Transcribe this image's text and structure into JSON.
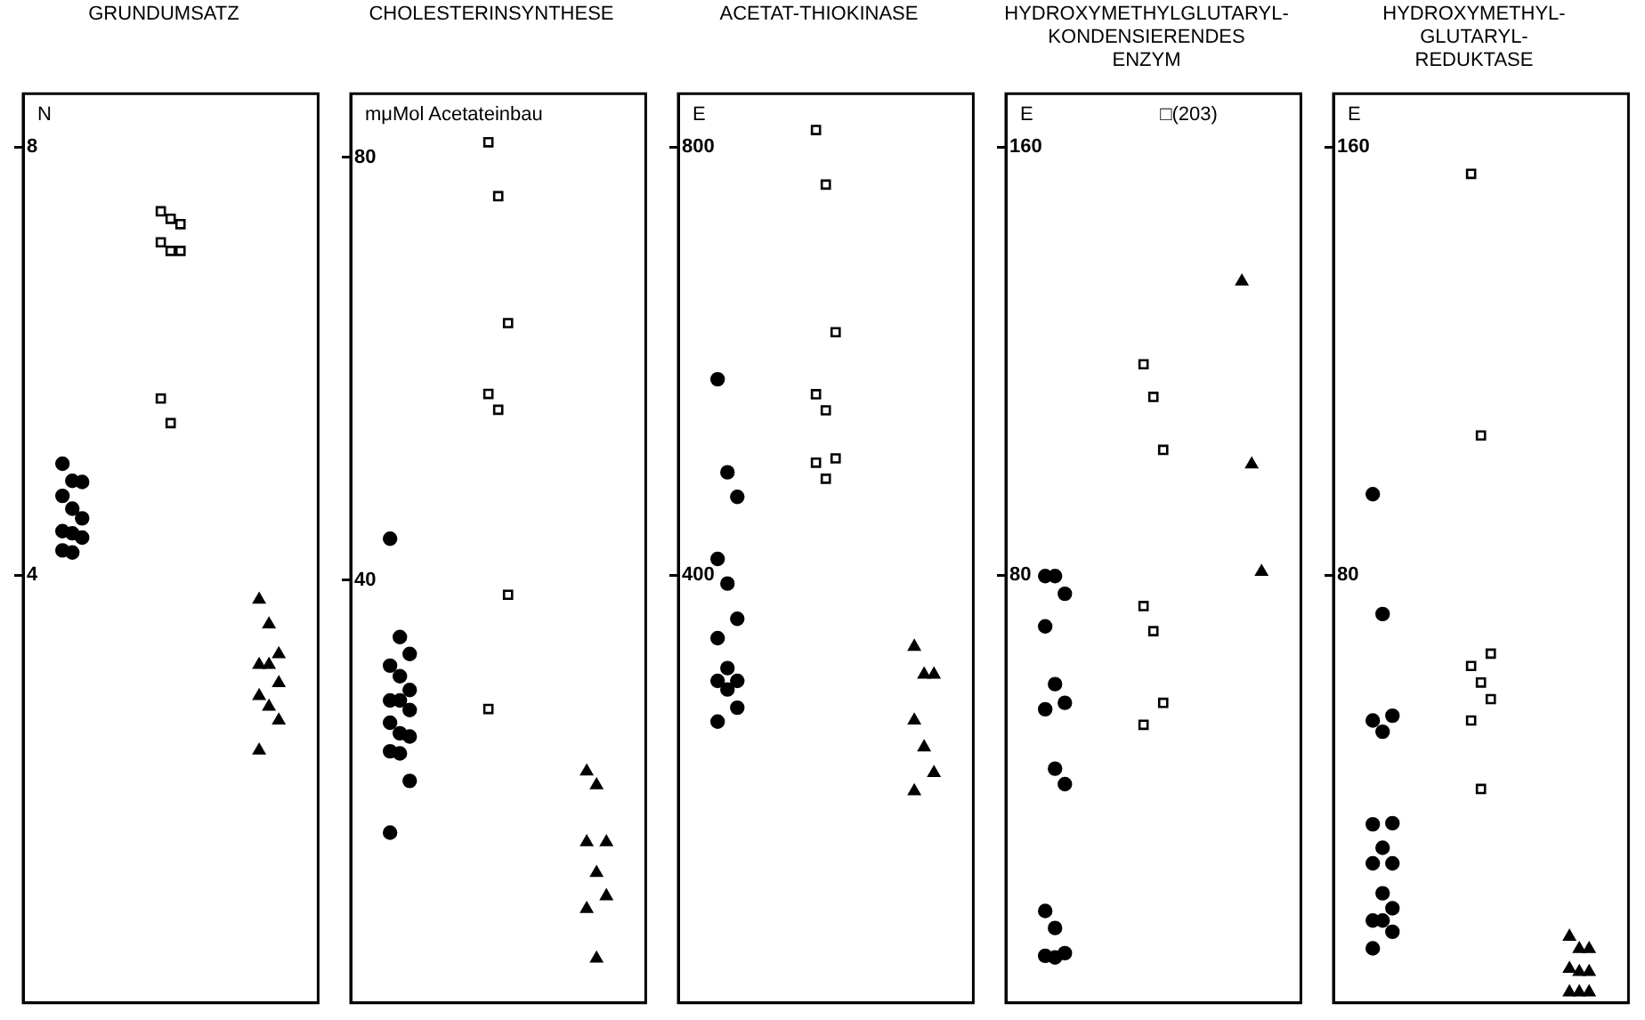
{
  "chart_data": [
    {
      "type": "scatter",
      "title": "GRUNDUMSATZ",
      "ylabel": "N",
      "categories": [
        null,
        null,
        null
      ],
      "ylim": [
        0,
        8.5
      ],
      "yticks": [
        4,
        8
      ],
      "tick_labels": "y",
      "legend": false,
      "series": [
        {
          "color": "#000000",
          "marker": "circle",
          "values": [
            5.04,
            null,
            null
          ]
        },
        {
          "color": "#000000",
          "marker": "circle",
          "values": [
            4.88,
            null,
            null
          ]
        },
        {
          "color": "#000000",
          "marker": "circle",
          "values": [
            4.87,
            null,
            null
          ]
        },
        {
          "color": "#000000",
          "marker": "circle",
          "values": [
            4.74,
            null,
            null
          ]
        },
        {
          "color": "#000000",
          "marker": "circle",
          "values": [
            4.62,
            null,
            null
          ]
        },
        {
          "color": "#000000",
          "marker": "circle",
          "values": [
            4.53,
            null,
            null
          ]
        },
        {
          "color": "#000000",
          "marker": "circle",
          "values": [
            4.41,
            null,
            null
          ]
        },
        {
          "color": "#000000",
          "marker": "circle",
          "values": [
            4.39,
            null,
            null
          ]
        },
        {
          "color": "#000000",
          "marker": "circle",
          "values": [
            4.35,
            null,
            null
          ]
        },
        {
          "color": "#000000",
          "marker": "circle",
          "values": [
            4.23,
            null,
            null
          ]
        },
        {
          "color": "#000000",
          "marker": "circle",
          "values": [
            4.21,
            null,
            null
          ]
        },
        {
          "color": "#000000",
          "marker": "square",
          "values": [
            null,
            7.4,
            null
          ]
        },
        {
          "color": "#000000",
          "marker": "square",
          "values": [
            null,
            7.33,
            null
          ]
        },
        {
          "color": "#000000",
          "marker": "square",
          "values": [
            null,
            7.28,
            null
          ]
        },
        {
          "color": "#000000",
          "marker": "square",
          "values": [
            null,
            7.11,
            null
          ]
        },
        {
          "color": "#000000",
          "marker": "square",
          "values": [
            null,
            7.03,
            null
          ]
        },
        {
          "color": "#000000",
          "marker": "square",
          "values": [
            null,
            7.03,
            null
          ]
        },
        {
          "color": "#000000",
          "marker": "square",
          "values": [
            null,
            5.65,
            null
          ]
        },
        {
          "color": "#000000",
          "marker": "square",
          "values": [
            null,
            5.42,
            null
          ]
        },
        {
          "color": "#000000",
          "marker": "triangle",
          "values": [
            null,
            null,
            3.77
          ]
        },
        {
          "color": "#000000",
          "marker": "triangle",
          "values": [
            null,
            null,
            3.54
          ]
        },
        {
          "color": "#000000",
          "marker": "triangle",
          "values": [
            null,
            null,
            3.26
          ]
        },
        {
          "color": "#000000",
          "marker": "triangle",
          "values": [
            null,
            null,
            3.16
          ]
        },
        {
          "color": "#000000",
          "marker": "triangle",
          "values": [
            null,
            null,
            3.16
          ]
        },
        {
          "color": "#000000",
          "marker": "triangle",
          "values": [
            null,
            null,
            2.99
          ]
        },
        {
          "color": "#000000",
          "marker": "triangle",
          "values": [
            null,
            null,
            2.87
          ]
        },
        {
          "color": "#000000",
          "marker": "triangle",
          "values": [
            null,
            null,
            2.77
          ]
        },
        {
          "color": "#000000",
          "marker": "triangle",
          "values": [
            null,
            null,
            2.64
          ]
        },
        {
          "color": "#000000",
          "marker": "triangle",
          "values": [
            null,
            null,
            2.36
          ]
        }
      ]
    },
    {
      "type": "scatter",
      "title": "CHOLESTERINSYNTHESE",
      "ylabel": "mμMol Acetateinbau",
      "categories": [
        null,
        null,
        null
      ],
      "ylim": [
        0,
        86
      ],
      "yticks": [
        40,
        80
      ],
      "tick_labels": "y",
      "legend": false,
      "series": [
        {
          "color": "#000000",
          "marker": "circle",
          "values": [
            43.9,
            null,
            null
          ]
        },
        {
          "color": "#000000",
          "marker": "circle",
          "values": [
            34.6,
            null,
            null
          ]
        },
        {
          "color": "#000000",
          "marker": "circle",
          "values": [
            33.0,
            null,
            null
          ]
        },
        {
          "color": "#000000",
          "marker": "circle",
          "values": [
            31.9,
            null,
            null
          ]
        },
        {
          "color": "#000000",
          "marker": "circle",
          "values": [
            30.9,
            null,
            null
          ]
        },
        {
          "color": "#000000",
          "marker": "circle",
          "values": [
            29.6,
            null,
            null
          ]
        },
        {
          "color": "#000000",
          "marker": "circle",
          "values": [
            28.6,
            null,
            null
          ]
        },
        {
          "color": "#000000",
          "marker": "circle",
          "values": [
            28.6,
            null,
            null
          ]
        },
        {
          "color": "#000000",
          "marker": "circle",
          "values": [
            27.7,
            null,
            null
          ]
        },
        {
          "color": "#000000",
          "marker": "circle",
          "values": [
            26.5,
            null,
            null
          ]
        },
        {
          "color": "#000000",
          "marker": "circle",
          "values": [
            25.5,
            null,
            null
          ]
        },
        {
          "color": "#000000",
          "marker": "circle",
          "values": [
            25.2,
            null,
            null
          ]
        },
        {
          "color": "#000000",
          "marker": "circle",
          "values": [
            23.8,
            null,
            null
          ]
        },
        {
          "color": "#000000",
          "marker": "circle",
          "values": [
            23.6,
            null,
            null
          ]
        },
        {
          "color": "#000000",
          "marker": "circle",
          "values": [
            21.0,
            null,
            null
          ]
        },
        {
          "color": "#000000",
          "marker": "circle",
          "values": [
            16.1,
            null,
            null
          ]
        },
        {
          "color": "#000000",
          "marker": "square",
          "values": [
            null,
            81.4,
            null
          ]
        },
        {
          "color": "#000000",
          "marker": "square",
          "values": [
            null,
            76.3,
            null
          ]
        },
        {
          "color": "#000000",
          "marker": "square",
          "values": [
            null,
            64.3,
            null
          ]
        },
        {
          "color": "#000000",
          "marker": "square",
          "values": [
            null,
            57.6,
            null
          ]
        },
        {
          "color": "#000000",
          "marker": "square",
          "values": [
            null,
            56.1,
            null
          ]
        },
        {
          "color": "#000000",
          "marker": "square",
          "values": [
            null,
            38.6,
            null
          ]
        },
        {
          "color": "#000000",
          "marker": "square",
          "values": [
            null,
            27.8,
            null
          ]
        },
        {
          "color": "#000000",
          "marker": "triangle",
          "values": [
            null,
            null,
            21.9
          ]
        },
        {
          "color": "#000000",
          "marker": "triangle",
          "values": [
            null,
            null,
            20.6
          ]
        },
        {
          "color": "#000000",
          "marker": "triangle",
          "values": [
            null,
            null,
            15.2
          ]
        },
        {
          "color": "#000000",
          "marker": "triangle",
          "values": [
            null,
            null,
            15.2
          ]
        },
        {
          "color": "#000000",
          "marker": "triangle",
          "values": [
            null,
            null,
            12.3
          ]
        },
        {
          "color": "#000000",
          "marker": "triangle",
          "values": [
            null,
            null,
            10.1
          ]
        },
        {
          "color": "#000000",
          "marker": "triangle",
          "values": [
            null,
            null,
            8.9
          ]
        },
        {
          "color": "#000000",
          "marker": "triangle",
          "values": [
            null,
            null,
            4.2
          ]
        }
      ]
    },
    {
      "type": "scatter",
      "title": "ACETAT-THIOKINASE",
      "ylabel": "E",
      "categories": [
        null,
        null,
        null
      ],
      "ylim": [
        0,
        850
      ],
      "yticks": [
        400,
        800
      ],
      "tick_labels": "y",
      "legend": false,
      "series": [
        {
          "color": "#000000",
          "marker": "circle",
          "values": [
            583,
            null,
            null
          ]
        },
        {
          "color": "#000000",
          "marker": "circle",
          "values": [
            496,
            null,
            null
          ]
        },
        {
          "color": "#000000",
          "marker": "circle",
          "values": [
            473,
            null,
            null
          ]
        },
        {
          "color": "#000000",
          "marker": "circle",
          "values": [
            415,
            null,
            null
          ]
        },
        {
          "color": "#000000",
          "marker": "circle",
          "values": [
            392,
            null,
            null
          ]
        },
        {
          "color": "#000000",
          "marker": "circle",
          "values": [
            359,
            null,
            null
          ]
        },
        {
          "color": "#000000",
          "marker": "circle",
          "values": [
            341,
            null,
            null
          ]
        },
        {
          "color": "#000000",
          "marker": "circle",
          "values": [
            313,
            null,
            null
          ]
        },
        {
          "color": "#000000",
          "marker": "circle",
          "values": [
            301,
            null,
            null
          ]
        },
        {
          "color": "#000000",
          "marker": "circle",
          "values": [
            301,
            null,
            null
          ]
        },
        {
          "color": "#000000",
          "marker": "circle",
          "values": [
            293,
            null,
            null
          ]
        },
        {
          "color": "#000000",
          "marker": "circle",
          "values": [
            276,
            null,
            null
          ]
        },
        {
          "color": "#000000",
          "marker": "circle",
          "values": [
            263,
            null,
            null
          ]
        },
        {
          "color": "#000000",
          "marker": "square",
          "values": [
            null,
            816,
            null
          ]
        },
        {
          "color": "#000000",
          "marker": "square",
          "values": [
            null,
            765,
            null
          ]
        },
        {
          "color": "#000000",
          "marker": "square",
          "values": [
            null,
            627,
            null
          ]
        },
        {
          "color": "#000000",
          "marker": "square",
          "values": [
            null,
            569,
            null
          ]
        },
        {
          "color": "#000000",
          "marker": "square",
          "values": [
            null,
            554,
            null
          ]
        },
        {
          "color": "#000000",
          "marker": "square",
          "values": [
            null,
            509,
            null
          ]
        },
        {
          "color": "#000000",
          "marker": "square",
          "values": [
            null,
            505,
            null
          ]
        },
        {
          "color": "#000000",
          "marker": "square",
          "values": [
            null,
            490,
            null
          ]
        },
        {
          "color": "#000000",
          "marker": "triangle",
          "values": [
            null,
            null,
            333
          ]
        },
        {
          "color": "#000000",
          "marker": "triangle",
          "values": [
            null,
            null,
            307
          ]
        },
        {
          "color": "#000000",
          "marker": "triangle",
          "values": [
            null,
            null,
            307
          ]
        },
        {
          "color": "#000000",
          "marker": "triangle",
          "values": [
            null,
            null,
            264
          ]
        },
        {
          "color": "#000000",
          "marker": "triangle",
          "values": [
            null,
            null,
            239
          ]
        },
        {
          "color": "#000000",
          "marker": "triangle",
          "values": [
            null,
            null,
            215
          ]
        },
        {
          "color": "#000000",
          "marker": "triangle",
          "values": [
            null,
            null,
            198
          ]
        }
      ]
    },
    {
      "type": "scatter",
      "title": "HYDROXYMETHYLGLUTARYL-\nKONDENSIERENDES\nENZYM",
      "ylabel": "E",
      "categories": [
        null,
        null,
        null
      ],
      "ylim": [
        0,
        170
      ],
      "yticks": [
        80,
        160
      ],
      "tick_labels": "y",
      "legend": false,
      "annotations": [
        "□(203)"
      ],
      "series": [
        {
          "color": "#000000",
          "marker": "circle",
          "values": [
            79.8,
            null,
            null
          ]
        },
        {
          "color": "#000000",
          "marker": "circle",
          "values": [
            79.8,
            null,
            null
          ]
        },
        {
          "color": "#000000",
          "marker": "circle",
          "values": [
            76.5,
            null,
            null
          ]
        },
        {
          "color": "#000000",
          "marker": "circle",
          "values": [
            70.4,
            null,
            null
          ]
        },
        {
          "color": "#000000",
          "marker": "circle",
          "values": [
            59.6,
            null,
            null
          ]
        },
        {
          "color": "#000000",
          "marker": "circle",
          "values": [
            56.1,
            null,
            null
          ]
        },
        {
          "color": "#000000",
          "marker": "circle",
          "values": [
            54.9,
            null,
            null
          ]
        },
        {
          "color": "#000000",
          "marker": "circle",
          "values": [
            43.8,
            null,
            null
          ]
        },
        {
          "color": "#000000",
          "marker": "circle",
          "values": [
            40.9,
            null,
            null
          ]
        },
        {
          "color": "#000000",
          "marker": "circle",
          "values": [
            17.2,
            null,
            null
          ]
        },
        {
          "color": "#000000",
          "marker": "circle",
          "values": [
            14.0,
            null,
            null
          ]
        },
        {
          "color": "#000000",
          "marker": "circle",
          "values": [
            9.3,
            null,
            null
          ]
        },
        {
          "color": "#000000",
          "marker": "circle",
          "values": [
            8.8,
            null,
            null
          ]
        },
        {
          "color": "#000000",
          "marker": "circle",
          "values": [
            8.5,
            null,
            null
          ]
        },
        {
          "color": "#000000",
          "marker": "square",
          "values": [
            null,
            119.4,
            null
          ]
        },
        {
          "color": "#000000",
          "marker": "square",
          "values": [
            null,
            113.3,
            null
          ]
        },
        {
          "color": "#000000",
          "marker": "square",
          "values": [
            null,
            103.4,
            null
          ]
        },
        {
          "color": "#000000",
          "marker": "square",
          "values": [
            null,
            74.2,
            null
          ]
        },
        {
          "color": "#000000",
          "marker": "square",
          "values": [
            null,
            69.5,
            null
          ]
        },
        {
          "color": "#000000",
          "marker": "square",
          "values": [
            null,
            56.1,
            null
          ]
        },
        {
          "color": "#000000",
          "marker": "square",
          "values": [
            null,
            52.0,
            null
          ]
        },
        {
          "color": "#000000",
          "marker": "triangle",
          "values": [
            null,
            null,
            134.9
          ]
        },
        {
          "color": "#000000",
          "marker": "triangle",
          "values": [
            null,
            null,
            100.7
          ]
        },
        {
          "color": "#000000",
          "marker": "triangle",
          "values": [
            null,
            null,
            80.6
          ]
        }
      ]
    },
    {
      "type": "scatter",
      "title": "HYDROXYMETHYL-\nGLUTARYL-\nREDUKTASE",
      "ylabel": "E",
      "categories": [
        null,
        null,
        null
      ],
      "ylim": [
        0,
        170
      ],
      "yticks": [
        80,
        160
      ],
      "tick_labels": "y",
      "legend": false,
      "series": [
        {
          "color": "#000000",
          "marker": "circle",
          "values": [
            95.1,
            null,
            null
          ]
        },
        {
          "color": "#000000",
          "marker": "circle",
          "values": [
            72.7,
            null,
            null
          ]
        },
        {
          "color": "#000000",
          "marker": "circle",
          "values": [
            53.7,
            null,
            null
          ]
        },
        {
          "color": "#000000",
          "marker": "circle",
          "values": [
            52.8,
            null,
            null
          ]
        },
        {
          "color": "#000000",
          "marker": "circle",
          "values": [
            50.7,
            null,
            null
          ]
        },
        {
          "color": "#000000",
          "marker": "circle",
          "values": [
            33.6,
            null,
            null
          ]
        },
        {
          "color": "#000000",
          "marker": "circle",
          "values": [
            33.4,
            null,
            null
          ]
        },
        {
          "color": "#000000",
          "marker": "circle",
          "values": [
            29.0,
            null,
            null
          ]
        },
        {
          "color": "#000000",
          "marker": "circle",
          "values": [
            26.1,
            null,
            null
          ]
        },
        {
          "color": "#000000",
          "marker": "circle",
          "values": [
            26.1,
            null,
            null
          ]
        },
        {
          "color": "#000000",
          "marker": "circle",
          "values": [
            20.5,
            null,
            null
          ]
        },
        {
          "color": "#000000",
          "marker": "circle",
          "values": [
            17.7,
            null,
            null
          ]
        },
        {
          "color": "#000000",
          "marker": "circle",
          "values": [
            15.4,
            null,
            null
          ]
        },
        {
          "color": "#000000",
          "marker": "circle",
          "values": [
            15.4,
            null,
            null
          ]
        },
        {
          "color": "#000000",
          "marker": "circle",
          "values": [
            13.3,
            null,
            null
          ]
        },
        {
          "color": "#000000",
          "marker": "circle",
          "values": [
            10.2,
            null,
            null
          ]
        },
        {
          "color": "#000000",
          "marker": "square",
          "values": [
            null,
            155.0,
            null
          ]
        },
        {
          "color": "#000000",
          "marker": "square",
          "values": [
            null,
            106.1,
            null
          ]
        },
        {
          "color": "#000000",
          "marker": "square",
          "values": [
            null,
            65.3,
            null
          ]
        },
        {
          "color": "#000000",
          "marker": "square",
          "values": [
            null,
            63.0,
            null
          ]
        },
        {
          "color": "#000000",
          "marker": "square",
          "values": [
            null,
            59.9,
            null
          ]
        },
        {
          "color": "#000000",
          "marker": "square",
          "values": [
            null,
            56.8,
            null
          ]
        },
        {
          "color": "#000000",
          "marker": "square",
          "values": [
            null,
            52.8,
            null
          ]
        },
        {
          "color": "#000000",
          "marker": "square",
          "values": [
            null,
            40.0,
            null
          ]
        },
        {
          "color": "#000000",
          "marker": "triangle",
          "values": [
            null,
            null,
            12.4
          ]
        },
        {
          "color": "#000000",
          "marker": "triangle",
          "values": [
            null,
            null,
            10.1
          ]
        },
        {
          "color": "#000000",
          "marker": "triangle",
          "values": [
            null,
            null,
            10.1
          ]
        },
        {
          "color": "#000000",
          "marker": "triangle",
          "values": [
            null,
            null,
            6.4
          ]
        },
        {
          "color": "#000000",
          "marker": "triangle",
          "values": [
            null,
            null,
            5.8
          ]
        },
        {
          "color": "#000000",
          "marker": "triangle",
          "values": [
            null,
            null,
            5.8
          ]
        },
        {
          "color": "#000000",
          "marker": "triangle",
          "values": [
            null,
            null,
            2.0
          ]
        },
        {
          "color": "#000000",
          "marker": "triangle",
          "values": [
            null,
            null,
            2.0
          ]
        },
        {
          "color": "#000000",
          "marker": "triangle",
          "values": [
            null,
            null,
            2.0
          ]
        }
      ]
    }
  ]
}
